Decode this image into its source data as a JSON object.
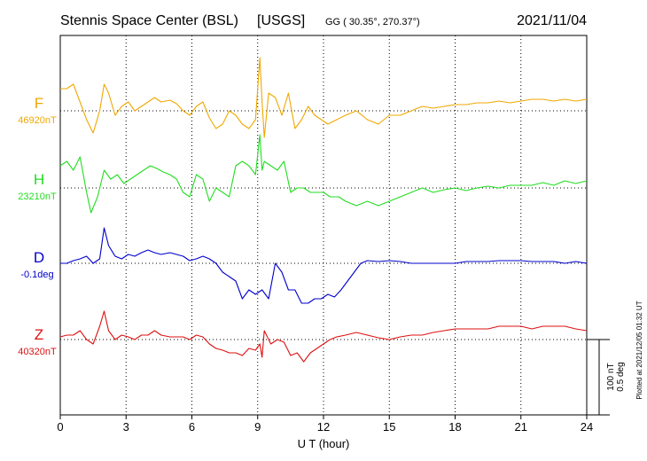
{
  "header": {
    "station": "Stennis Space Center (BSL)",
    "agency": "[USGS]",
    "coords": "GG ( 30.35°, 270.37°)",
    "date": "2021/11/04"
  },
  "footer": {
    "xlabel": "U T (hour)",
    "plotted": "Plotted at 2021/12/05 01:32 UT"
  },
  "scale_bar": {
    "nt": "100 nT",
    "deg": "0.5 deg"
  },
  "colors": {
    "F": "#f0a800",
    "H": "#22dd22",
    "D": "#0000cc",
    "Z": "#dd1111",
    "axis": "#000000",
    "grid": "#000000"
  },
  "chart_data": {
    "type": "line",
    "xlabel": "U T (hour)",
    "xlim": [
      0,
      24
    ],
    "x_ticks": [
      "0",
      "3",
      "6",
      "9",
      "12",
      "15",
      "18",
      "21",
      "24"
    ],
    "grid": true,
    "series": [
      {
        "name": "F",
        "baseline_label": "46920nT",
        "x": [
          0,
          0.3,
          0.6,
          0.9,
          1.2,
          1.5,
          1.8,
          2.0,
          2.2,
          2.5,
          2.8,
          3.1,
          3.4,
          3.7,
          4.0,
          4.3,
          4.6,
          5.0,
          5.3,
          5.6,
          5.9,
          6.2,
          6.5,
          6.8,
          7.1,
          7.4,
          7.7,
          8.0,
          8.3,
          8.6,
          8.9,
          9.1,
          9.2,
          9.3,
          9.5,
          9.8,
          10.1,
          10.4,
          10.7,
          11.0,
          11.3,
          11.6,
          11.9,
          12.2,
          12.6,
          13.0,
          13.5,
          14.0,
          14.5,
          15.0,
          15.5,
          16.0,
          16.5,
          17.0,
          17.5,
          18.0,
          18.5,
          19.0,
          19.5,
          20.0,
          20.5,
          21.0,
          21.5,
          22.0,
          22.5,
          23.0,
          23.5,
          24.0
        ],
        "y": [
          25,
          25,
          30,
          10,
          -10,
          -25,
          0,
          30,
          20,
          -5,
          5,
          10,
          0,
          5,
          10,
          15,
          10,
          12,
          8,
          0,
          -5,
          5,
          10,
          -8,
          -20,
          -15,
          0,
          -5,
          -15,
          -20,
          -10,
          60,
          10,
          -30,
          20,
          15,
          -5,
          20,
          -20,
          -10,
          5,
          -5,
          -10,
          -15,
          -10,
          -5,
          0,
          -10,
          -15,
          -5,
          -5,
          0,
          5,
          3,
          5,
          7,
          7,
          9,
          9,
          11,
          9,
          11,
          13,
          13,
          11,
          13,
          11,
          13
        ]
      },
      {
        "name": "H",
        "baseline_label": "23210nT",
        "x": [
          0,
          0.3,
          0.6,
          0.9,
          1.2,
          1.4,
          1.7,
          2.0,
          2.3,
          2.6,
          2.9,
          3.2,
          3.5,
          3.8,
          4.1,
          4.4,
          4.7,
          5.0,
          5.3,
          5.6,
          5.9,
          6.2,
          6.5,
          6.8,
          7.1,
          7.4,
          7.7,
          8.0,
          8.3,
          8.6,
          8.9,
          9.1,
          9.2,
          9.3,
          9.6,
          9.9,
          10.2,
          10.5,
          10.8,
          11.1,
          11.4,
          11.7,
          12.0,
          12.3,
          12.7,
          13.0,
          13.5,
          14.0,
          14.5,
          15.0,
          15.5,
          16.0,
          16.5,
          17.0,
          17.5,
          18.0,
          18.5,
          19.0,
          19.5,
          20.0,
          20.5,
          21.0,
          21.5,
          22.0,
          22.5,
          23.0,
          23.5,
          24.0
        ],
        "y": [
          25,
          30,
          20,
          35,
          -5,
          -28,
          -10,
          20,
          10,
          15,
          5,
          10,
          15,
          20,
          25,
          22,
          18,
          15,
          10,
          -5,
          -10,
          15,
          10,
          -15,
          0,
          -5,
          -10,
          25,
          30,
          25,
          15,
          60,
          20,
          30,
          25,
          20,
          30,
          -5,
          0,
          0,
          -5,
          -5,
          -5,
          -10,
          -10,
          -15,
          -20,
          -15,
          -20,
          -15,
          -10,
          -5,
          0,
          -5,
          -2,
          0,
          -3,
          0,
          2,
          0,
          3,
          3,
          3,
          6,
          3,
          8,
          5,
          8
        ]
      },
      {
        "name": "D",
        "baseline_label": "-0.1deg",
        "x": [
          0,
          0.3,
          0.6,
          0.9,
          1.2,
          1.5,
          1.8,
          2.0,
          2.2,
          2.5,
          2.8,
          3.1,
          3.4,
          3.7,
          4.0,
          4.3,
          4.6,
          5.0,
          5.3,
          5.6,
          5.9,
          6.2,
          6.5,
          6.8,
          7.1,
          7.4,
          7.7,
          8.0,
          8.3,
          8.6,
          8.9,
          9.2,
          9.5,
          9.8,
          10.1,
          10.4,
          10.7,
          11.0,
          11.3,
          11.6,
          11.9,
          12.2,
          12.5,
          12.8,
          13.1,
          13.4,
          13.7,
          14.0,
          14.5,
          15.0,
          15.5,
          16.0,
          16.5,
          17.0,
          17.5,
          18.0,
          18.5,
          19.0,
          19.5,
          20.0,
          20.5,
          21.0,
          21.5,
          22.0,
          22.5,
          23.0,
          23.5,
          24.0
        ],
        "y": [
          0,
          0,
          3,
          5,
          8,
          0,
          5,
          40,
          20,
          8,
          5,
          10,
          8,
          12,
          15,
          12,
          10,
          12,
          10,
          8,
          3,
          5,
          8,
          5,
          0,
          -10,
          -15,
          -20,
          -40,
          -30,
          -35,
          -30,
          -40,
          0,
          -10,
          -30,
          -30,
          -45,
          -45,
          -40,
          -40,
          -35,
          -38,
          -30,
          -20,
          -10,
          0,
          3,
          2,
          3,
          2,
          0,
          0,
          0,
          0,
          0,
          2,
          2,
          2,
          3,
          3,
          3,
          2,
          2,
          2,
          0,
          2,
          0
        ]
      },
      {
        "name": "Z",
        "baseline_label": "40320nT",
        "x": [
          0,
          0.3,
          0.6,
          0.9,
          1.2,
          1.5,
          1.8,
          2.0,
          2.2,
          2.5,
          2.8,
          3.1,
          3.4,
          3.7,
          4.0,
          4.3,
          4.6,
          5.0,
          5.3,
          5.6,
          5.9,
          6.2,
          6.5,
          6.8,
          7.1,
          7.4,
          7.7,
          8.0,
          8.3,
          8.6,
          8.9,
          9.1,
          9.2,
          9.3,
          9.6,
          9.9,
          10.2,
          10.5,
          10.8,
          11.1,
          11.4,
          11.7,
          12.0,
          12.3,
          12.6,
          13.0,
          13.5,
          14.0,
          14.5,
          15.0,
          15.5,
          16.0,
          16.5,
          17.0,
          17.5,
          18.0,
          18.5,
          19.0,
          19.5,
          20.0,
          20.5,
          21.0,
          21.5,
          22.0,
          22.5,
          23.0,
          23.5,
          24.0
        ],
        "y": [
          3,
          5,
          5,
          10,
          0,
          -5,
          15,
          32,
          10,
          0,
          5,
          3,
          0,
          5,
          5,
          10,
          5,
          3,
          3,
          3,
          0,
          5,
          3,
          -5,
          -10,
          -12,
          -15,
          -15,
          -18,
          -10,
          -12,
          -5,
          -20,
          10,
          -5,
          0,
          -3,
          -18,
          -15,
          -25,
          -15,
          -10,
          -5,
          0,
          3,
          5,
          8,
          5,
          2,
          0,
          3,
          5,
          5,
          8,
          10,
          12,
          12,
          12,
          12,
          15,
          15,
          15,
          12,
          15,
          15,
          15,
          12,
          10
        ]
      }
    ]
  }
}
